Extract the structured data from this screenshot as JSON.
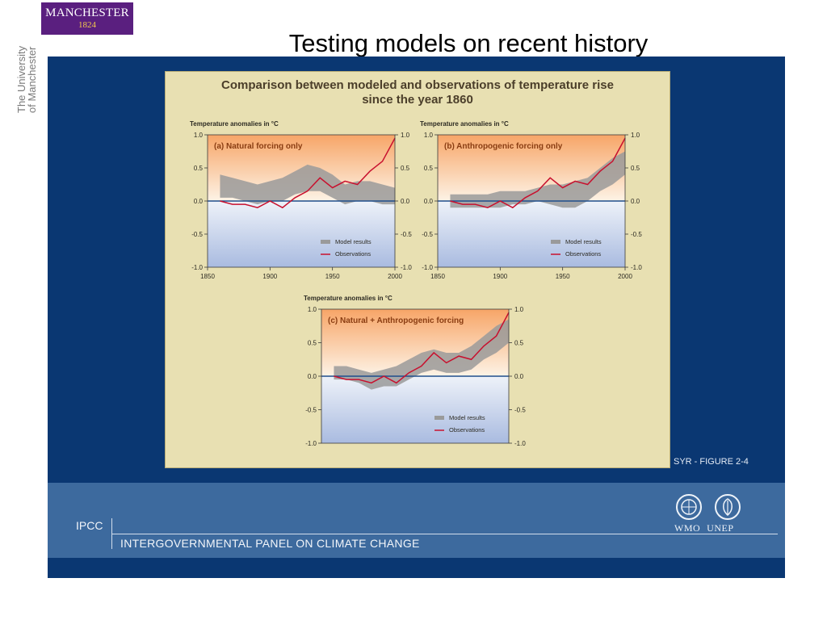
{
  "slide": {
    "title": "Testing models on recent history",
    "logo_name": "MANCHESTER",
    "logo_year": "1824",
    "side_line1": "The University",
    "side_line2": "of Manchester"
  },
  "figure": {
    "title_line1": "Comparison between modeled and observations of temperature rise",
    "title_line2": "since the year 1860",
    "source_label": "SYR - FIGURE 2-4"
  },
  "footer": {
    "org_short": "IPCC",
    "org_full": "INTERGOVERNMENTAL PANEL ON CLIMATE CHANGE",
    "wmo": "WMO",
    "unep": "UNEP"
  },
  "colors": {
    "panel_bg": "#0a3772",
    "figure_bg": "#e8e0b2",
    "observations": "#c8102e",
    "model_results": "#9a9a9a",
    "zero_line": "#1f4e8c"
  },
  "chart_data": [
    {
      "type": "line",
      "title": "(a) Natural forcing only",
      "ylabel": "Temperature anomalies in °C",
      "xlim": [
        1850,
        2000
      ],
      "ylim": [
        -1.0,
        1.0
      ],
      "x_ticks": [
        "1850",
        "1900",
        "1950",
        "2000"
      ],
      "y_ticks": [
        "-1.0",
        "-0.5",
        "0.0",
        "0.5",
        "1.0"
      ],
      "legend": [
        "Model results",
        "Observations"
      ],
      "legend_position": "lower-right",
      "x": [
        1860,
        1870,
        1880,
        1890,
        1900,
        1910,
        1920,
        1930,
        1940,
        1950,
        1960,
        1970,
        1980,
        1990,
        2000
      ],
      "series": [
        {
          "name": "Model results",
          "kind": "band",
          "lower": [
            0.05,
            0.05,
            0.0,
            -0.05,
            0.0,
            0.0,
            0.1,
            0.15,
            0.15,
            0.05,
            -0.05,
            0.0,
            0.0,
            -0.05,
            -0.05
          ],
          "upper": [
            0.4,
            0.35,
            0.3,
            0.25,
            0.3,
            0.35,
            0.45,
            0.55,
            0.5,
            0.4,
            0.25,
            0.3,
            0.3,
            0.25,
            0.2
          ]
        },
        {
          "name": "Observations",
          "kind": "line",
          "values": [
            0.0,
            -0.05,
            -0.05,
            -0.1,
            0.0,
            -0.1,
            0.05,
            0.15,
            0.35,
            0.2,
            0.3,
            0.25,
            0.45,
            0.6,
            0.95
          ]
        }
      ]
    },
    {
      "type": "line",
      "title": "(b) Anthropogenic forcing only",
      "ylabel": "Temperature anomalies in °C",
      "xlim": [
        1850,
        2000
      ],
      "ylim": [
        -1.0,
        1.0
      ],
      "x_ticks": [
        "1850",
        "1900",
        "1950",
        "2000"
      ],
      "y_ticks": [
        "-1.0",
        "-0.5",
        "0.0",
        "0.5",
        "1.0"
      ],
      "legend": [
        "Model results",
        "Observations"
      ],
      "legend_position": "lower-right",
      "x": [
        1860,
        1870,
        1880,
        1890,
        1900,
        1910,
        1920,
        1930,
        1940,
        1950,
        1960,
        1970,
        1980,
        1990,
        2000
      ],
      "series": [
        {
          "name": "Model results",
          "kind": "band",
          "lower": [
            -0.1,
            -0.1,
            -0.1,
            -0.1,
            -0.1,
            -0.05,
            -0.05,
            0.0,
            -0.05,
            -0.1,
            -0.1,
            0.0,
            0.15,
            0.25,
            0.4
          ],
          "upper": [
            0.1,
            0.1,
            0.1,
            0.1,
            0.15,
            0.15,
            0.15,
            0.2,
            0.25,
            0.25,
            0.3,
            0.35,
            0.5,
            0.65,
            0.75
          ]
        },
        {
          "name": "Observations",
          "kind": "line",
          "values": [
            0.0,
            -0.05,
            -0.05,
            -0.1,
            0.0,
            -0.1,
            0.05,
            0.15,
            0.35,
            0.2,
            0.3,
            0.25,
            0.45,
            0.6,
            0.95
          ]
        }
      ]
    },
    {
      "type": "line",
      "title": "(c) Natural + Anthropogenic forcing",
      "ylabel": "Temperature anomalies in °C",
      "xlim": [
        1850,
        2000
      ],
      "ylim": [
        -1.0,
        1.0
      ],
      "y_ticks": [
        "-1.0",
        "-0.5",
        "0.0",
        "0.5",
        "1.0"
      ],
      "legend": [
        "Model results",
        "Observations"
      ],
      "legend_position": "lower-right",
      "x": [
        1860,
        1870,
        1880,
        1890,
        1900,
        1910,
        1920,
        1930,
        1940,
        1950,
        1960,
        1970,
        1980,
        1990,
        2000
      ],
      "series": [
        {
          "name": "Model results",
          "kind": "band",
          "lower": [
            -0.05,
            -0.05,
            -0.1,
            -0.2,
            -0.15,
            -0.15,
            -0.05,
            0.05,
            0.1,
            0.05,
            0.05,
            0.1,
            0.25,
            0.35,
            0.5
          ],
          "upper": [
            0.15,
            0.15,
            0.1,
            0.05,
            0.1,
            0.15,
            0.25,
            0.35,
            0.4,
            0.35,
            0.35,
            0.45,
            0.6,
            0.75,
            0.85
          ]
        },
        {
          "name": "Observations",
          "kind": "line",
          "values": [
            0.0,
            -0.05,
            -0.05,
            -0.1,
            0.0,
            -0.1,
            0.05,
            0.15,
            0.35,
            0.2,
            0.3,
            0.25,
            0.45,
            0.6,
            0.95
          ]
        }
      ]
    }
  ]
}
